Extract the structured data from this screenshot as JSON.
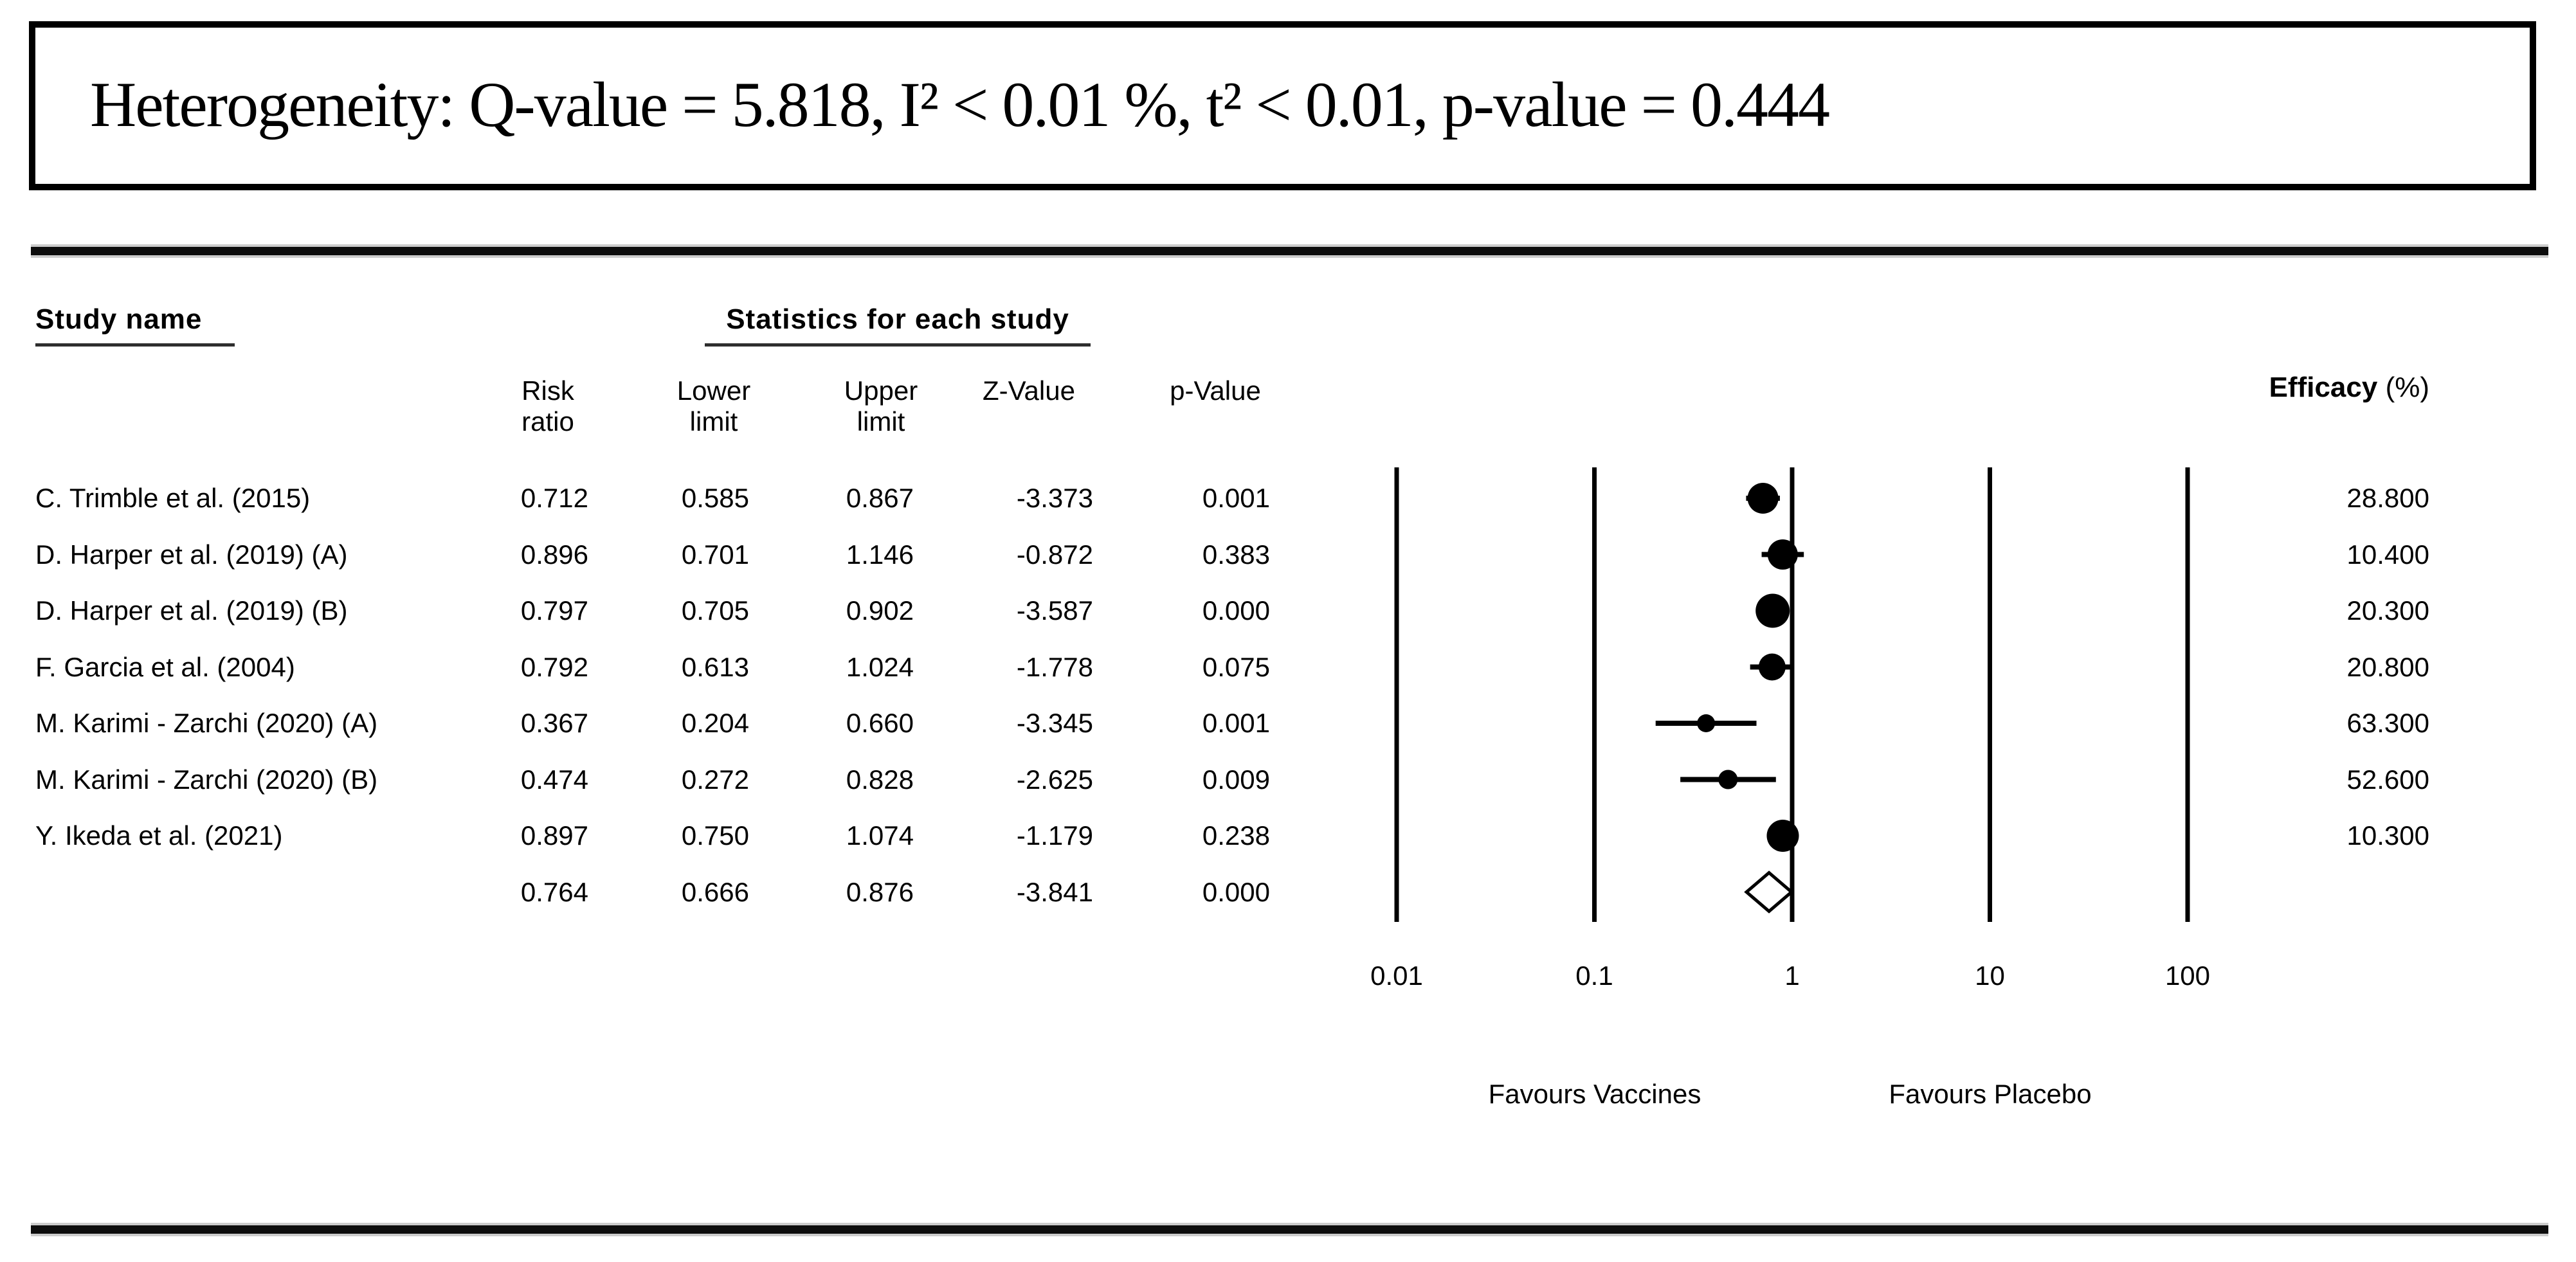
{
  "figure": {
    "heterogeneity": "Heterogeneity: Q-value = 5.818, I² < 0.01 %, t² < 0.01, p-value = 0.444"
  },
  "table": {
    "study_name_header": "Study name",
    "statistics_header": "Statistics for each study",
    "columns": [
      {
        "line1": "Risk",
        "line2": "ratio"
      },
      {
        "line1": "Lower",
        "line2": "limit"
      },
      {
        "line1": "Upper",
        "line2": "limit"
      },
      {
        "line1": "",
        "line2": "Z-Value"
      },
      {
        "line1": "",
        "line2": "p-Value"
      }
    ],
    "efficacy_header": {
      "bold": "Efficacy",
      "rest": " (%)"
    },
    "rows": [
      {
        "study": "C. Trimble et al. (2015)",
        "risk_ratio": "0.712",
        "lower": "0.585",
        "upper": "0.867",
        "z_value": "-3.373",
        "p_value": "0.001",
        "efficacy": "28.800"
      },
      {
        "study": "D. Harper et al. (2019) (A)",
        "risk_ratio": "0.896",
        "lower": "0.701",
        "upper": "1.146",
        "z_value": "-0.872",
        "p_value": "0.383",
        "efficacy": "10.400"
      },
      {
        "study": "D. Harper et al. (2019) (B)",
        "risk_ratio": "0.797",
        "lower": "0.705",
        "upper": "0.902",
        "z_value": "-3.587",
        "p_value": "0.000",
        "efficacy": "20.300"
      },
      {
        "study": "F. Garcia et al. (2004)",
        "risk_ratio": "0.792",
        "lower": "0.613",
        "upper": "1.024",
        "z_value": "-1.778",
        "p_value": "0.075",
        "efficacy": "20.800"
      },
      {
        "study": "M. Karimi - Zarchi (2020) (A)",
        "risk_ratio": "0.367",
        "lower": "0.204",
        "upper": "0.660",
        "z_value": "-3.345",
        "p_value": "0.001",
        "efficacy": "63.300"
      },
      {
        "study": "M. Karimi - Zarchi (2020) (B)",
        "risk_ratio": "0.474",
        "lower": "0.272",
        "upper": "0.828",
        "z_value": "-2.625",
        "p_value": "0.009",
        "efficacy": "52.600"
      },
      {
        "study": "Y. Ikeda et al. (2021)",
        "risk_ratio": "0.897",
        "lower": "0.750",
        "upper": "1.074",
        "z_value": "-1.179",
        "p_value": "0.238",
        "efficacy": "10.300"
      },
      {
        "study": "",
        "risk_ratio": "0.764",
        "lower": "0.666",
        "upper": "0.876",
        "z_value": "-3.841",
        "p_value": "0.000",
        "efficacy": ""
      }
    ]
  },
  "plot": {
    "favours_left": "Favours Vaccines",
    "favours_right": "Favours Placebo"
  },
  "chart_data": {
    "type": "scatter",
    "variant": "forest-plot",
    "effect_measure": "Risk ratio",
    "x_scale": "log10",
    "x_range": [
      0.01,
      100
    ],
    "x_ticks": [
      "0.01",
      "0.1",
      "1",
      "10",
      "100"
    ],
    "grid": "vertical-lines-at-ticks",
    "axis_labels_below": [
      "Favours Vaccines",
      "Favours Placebo"
    ],
    "studies": [
      {
        "name": "C. Trimble et al. (2015)",
        "risk_ratio": 0.712,
        "lower": 0.585,
        "upper": 0.867,
        "z_value": -3.373,
        "p_value": 0.001,
        "efficacy_pct": 28.8,
        "marker_size": 48
      },
      {
        "name": "D. Harper et al. (2019) (A)",
        "risk_ratio": 0.896,
        "lower": 0.701,
        "upper": 1.146,
        "z_value": -0.872,
        "p_value": 0.383,
        "efficacy_pct": 10.4,
        "marker_size": 47
      },
      {
        "name": "D. Harper et al. (2019) (B)",
        "risk_ratio": 0.797,
        "lower": 0.705,
        "upper": 0.902,
        "z_value": -3.587,
        "p_value": 0.0,
        "efficacy_pct": 20.3,
        "marker_size": 53
      },
      {
        "name": "F. Garcia et al. (2004)",
        "risk_ratio": 0.792,
        "lower": 0.613,
        "upper": 1.024,
        "z_value": -1.778,
        "p_value": 0.075,
        "efficacy_pct": 20.8,
        "marker_size": 42
      },
      {
        "name": "M. Karimi - Zarchi (2020) (A)",
        "risk_ratio": 0.367,
        "lower": 0.204,
        "upper": 0.66,
        "z_value": -3.345,
        "p_value": 0.001,
        "efficacy_pct": 63.3,
        "marker_size": 28
      },
      {
        "name": "M. Karimi - Zarchi (2020) (B)",
        "risk_ratio": 0.474,
        "lower": 0.272,
        "upper": 0.828,
        "z_value": -2.625,
        "p_value": 0.009,
        "efficacy_pct": 52.6,
        "marker_size": 30
      },
      {
        "name": "Y. Ikeda et al. (2021)",
        "risk_ratio": 0.897,
        "lower": 0.75,
        "upper": 1.074,
        "z_value": -1.179,
        "p_value": 0.238,
        "efficacy_pct": 10.3,
        "marker_size": 50
      }
    ],
    "overall": {
      "risk_ratio": 0.764,
      "lower": 0.666,
      "upper": 0.876,
      "z_value": -3.841,
      "p_value": 0.0,
      "marker": "open-diamond"
    },
    "colors": {
      "foreground": "#000000",
      "background": "#ffffff"
    }
  }
}
